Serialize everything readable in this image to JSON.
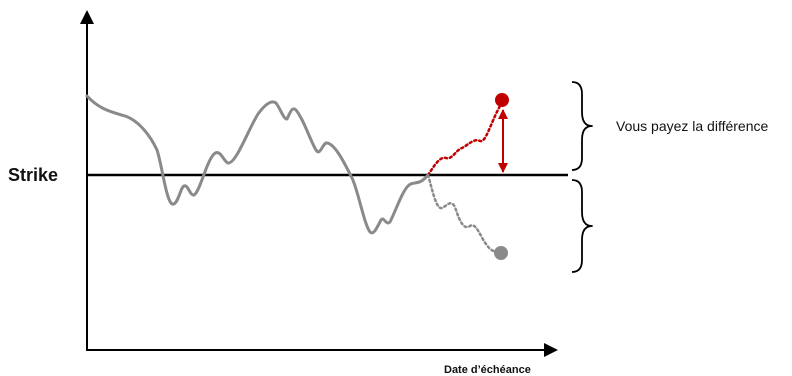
{
  "labels": {
    "strike": "Strike",
    "x_axis": "Date d’échéance",
    "difference_note": "Vous payez la différence"
  },
  "colors": {
    "axis": "#000000",
    "path": "#8a8a8a",
    "up_scenario": "#c00000",
    "down_scenario": "#8a8a8a",
    "brace": "#000000"
  }
}
